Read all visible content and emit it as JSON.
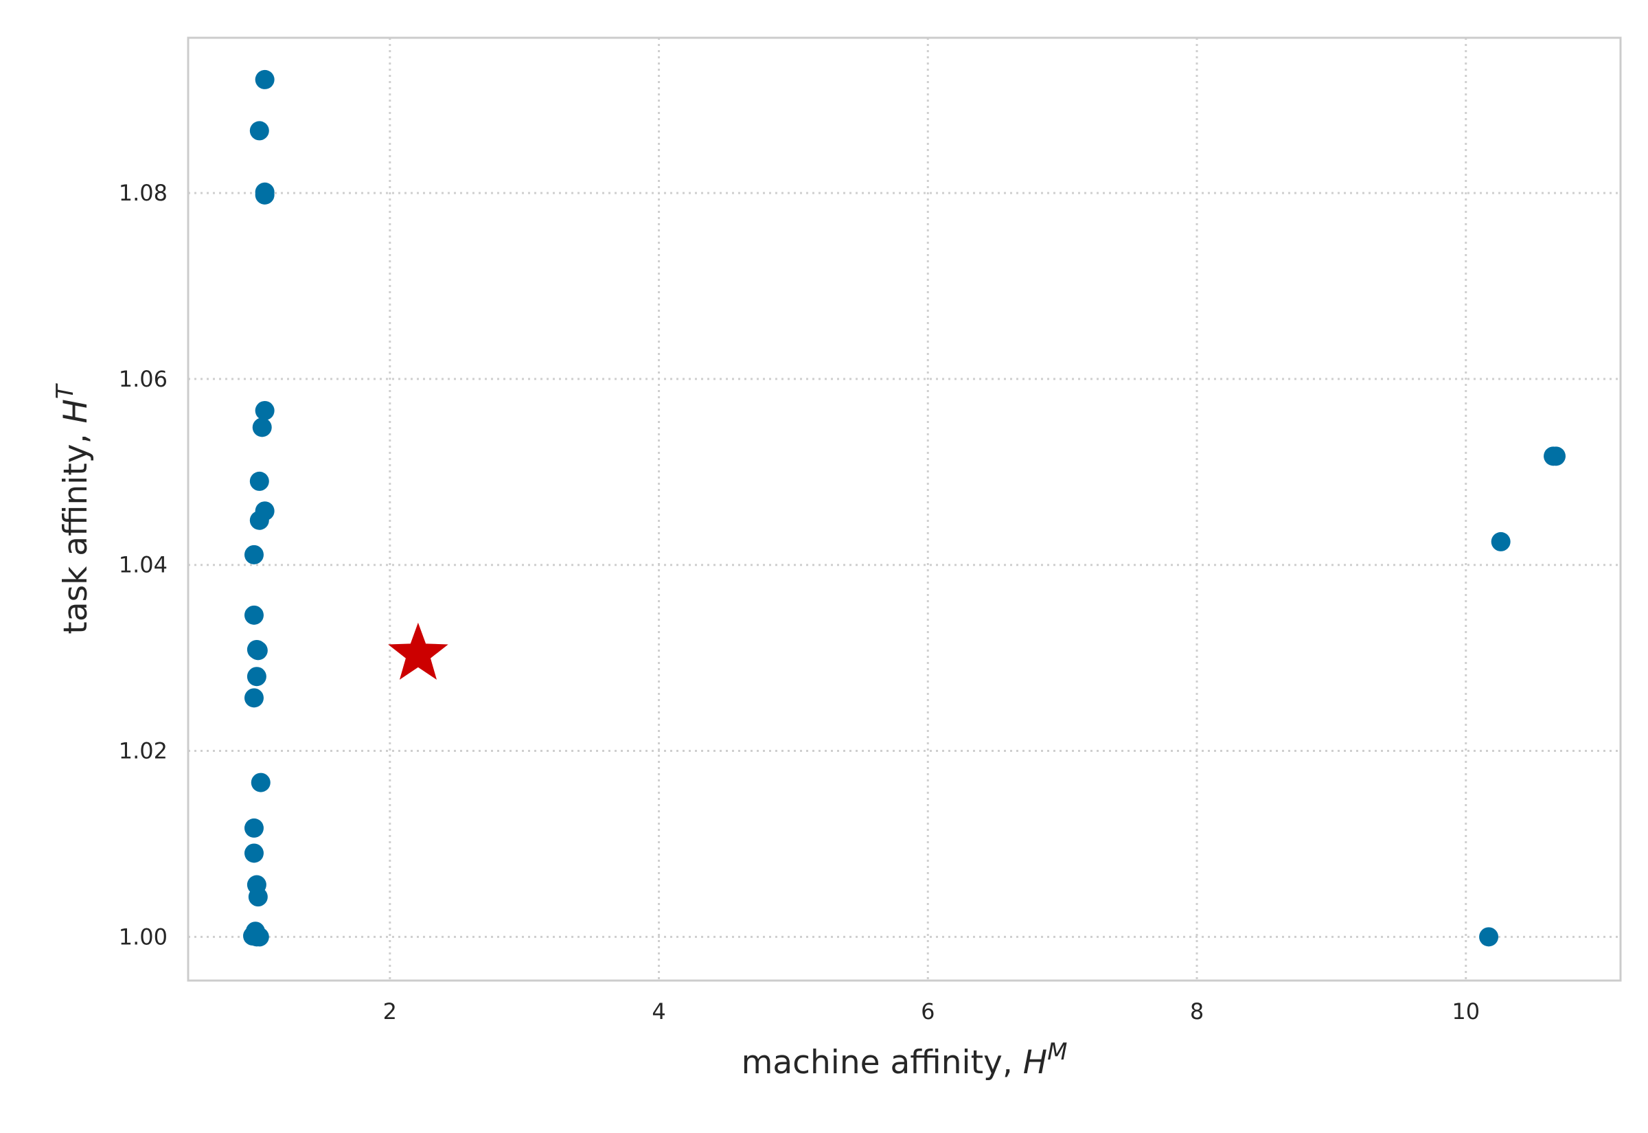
{
  "chart_data": {
    "type": "scatter",
    "title": "",
    "xlabel": {
      "text": "machine affinity, ",
      "symbol": "H",
      "sup": "M"
    },
    "ylabel": {
      "text": "task affinity, ",
      "symbol": "H",
      "sup": "T"
    },
    "xlim": [
      0.5,
      11.15
    ],
    "ylim": [
      0.9953,
      1.0967
    ],
    "xticks": [
      2,
      4,
      6,
      8,
      10
    ],
    "xtick_labels": [
      "2",
      "4",
      "6",
      "8",
      "10"
    ],
    "yticks": [
      1.0,
      1.02,
      1.04,
      1.06,
      1.08
    ],
    "ytick_labels": [
      "1.00",
      "1.02",
      "1.04",
      "1.06",
      "1.08"
    ],
    "grid": true,
    "colors": {
      "points": "#0070a4",
      "star": "#cc0000",
      "frame": "#cccccc",
      "grid": "#cfcfcf"
    },
    "series": [
      {
        "marker": "circle",
        "color": "#0070a4",
        "points": [
          {
            "x": 1.07,
            "y": 1.0922
          },
          {
            "x": 1.03,
            "y": 1.0867
          },
          {
            "x": 1.07,
            "y": 1.0801
          },
          {
            "x": 1.07,
            "y": 1.0798
          },
          {
            "x": 1.07,
            "y": 1.0566
          },
          {
            "x": 1.05,
            "y": 1.0548
          },
          {
            "x": 1.03,
            "y": 1.049
          },
          {
            "x": 1.07,
            "y": 1.0458
          },
          {
            "x": 1.03,
            "y": 1.0448
          },
          {
            "x": 0.99,
            "y": 1.0411
          },
          {
            "x": 0.99,
            "y": 1.0346
          },
          {
            "x": 1.01,
            "y": 1.0309
          },
          {
            "x": 1.02,
            "y": 1.0308
          },
          {
            "x": 1.01,
            "y": 1.028
          },
          {
            "x": 0.99,
            "y": 1.0257
          },
          {
            "x": 1.04,
            "y": 1.0166
          },
          {
            "x": 0.99,
            "y": 1.0117
          },
          {
            "x": 0.99,
            "y": 1.009
          },
          {
            "x": 1.01,
            "y": 1.0056
          },
          {
            "x": 1.02,
            "y": 1.0043
          },
          {
            "x": 1.0,
            "y": 1.0006
          },
          {
            "x": 0.98,
            "y": 1.0001
          },
          {
            "x": 1.01,
            "y": 1.0
          },
          {
            "x": 1.03,
            "y": 1.0
          },
          {
            "x": 10.65,
            "y": 1.0517
          },
          {
            "x": 10.67,
            "y": 1.0517
          },
          {
            "x": 10.26,
            "y": 1.0425
          },
          {
            "x": 10.17,
            "y": 1.0
          }
        ]
      },
      {
        "marker": "star",
        "color": "#cc0000",
        "points": [
          {
            "x": 2.21,
            "y": 1.0304
          }
        ]
      }
    ]
  }
}
